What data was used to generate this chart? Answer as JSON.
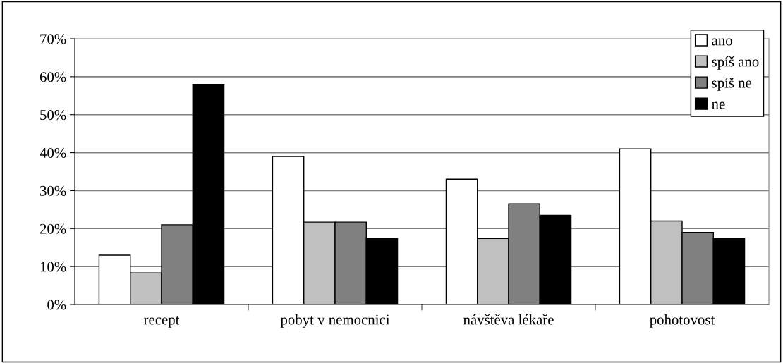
{
  "chart_data": {
    "type": "bar",
    "categories": [
      "recept",
      "pobyt v nemocnici",
      "návštěva lékaře",
      "pohotovost"
    ],
    "series": [
      {
        "name": "ano",
        "color": "#ffffff",
        "values": [
          13,
          39,
          33,
          41
        ]
      },
      {
        "name": "spíš ano",
        "color": "#c0c0c0",
        "values": [
          8.3,
          21.7,
          17.4,
          22
        ]
      },
      {
        "name": "spíš ne",
        "color": "#808080",
        "values": [
          21,
          21.7,
          26.5,
          19
        ]
      },
      {
        "name": "ne",
        "color": "#000000",
        "values": [
          58,
          17.4,
          23.5,
          17.4
        ]
      }
    ],
    "ylim": [
      0,
      70
    ],
    "yticks": [
      {
        "value": 0,
        "label": "0%"
      },
      {
        "value": 10,
        "label": "10%"
      },
      {
        "value": 20,
        "label": "20%"
      },
      {
        "value": 30,
        "label": "30%"
      },
      {
        "value": 40,
        "label": "40%"
      },
      {
        "value": 50,
        "label": "50%"
      },
      {
        "value": 60,
        "label": "60%"
      },
      {
        "value": 70,
        "label": "70%"
      }
    ],
    "grid": "y",
    "legend": "top right"
  }
}
